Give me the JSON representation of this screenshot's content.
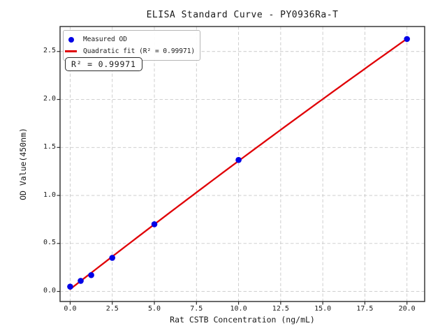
{
  "annotation": "R² = 0.99971",
  "colors": {
    "point": "#0202e6",
    "fit_line": "#e00006",
    "grid": "#c9c9c9",
    "spine": "#2b2b2b",
    "tick": "#2b2b2b"
  },
  "chart_data": {
    "type": "scatter",
    "title": "ELISA Standard Curve - PY0936Ra-T",
    "xlabel": "Rat CSTB Concentration (ng/mL)",
    "ylabel": "OD Value(450nm)",
    "x_ticks": [
      0.0,
      2.5,
      5.0,
      7.5,
      10.0,
      12.5,
      15.0,
      17.5,
      20.0
    ],
    "y_ticks": [
      0.0,
      0.5,
      1.0,
      1.5,
      2.0,
      2.5
    ],
    "xlim": [
      -0.6,
      21.05
    ],
    "ylim": [
      -0.105,
      2.76
    ],
    "grid": true,
    "grid_style": "dashed",
    "legend_position": "upper left",
    "series": [
      {
        "name": "Measured OD",
        "type": "scatter",
        "color": "#0202e6",
        "x": [
          0.0,
          0.625,
          1.25,
          2.5,
          5.0,
          10.0,
          20.0
        ],
        "y": [
          0.05,
          0.11,
          0.17,
          0.35,
          0.7,
          1.37,
          2.63
        ]
      },
      {
        "name": "Quadratic fit (R² = 0.99971)",
        "type": "line",
        "color": "#e00006",
        "fit": "quadratic",
        "r_squared": 0.99971,
        "x_range": [
          0.0,
          20.0
        ]
      }
    ]
  }
}
